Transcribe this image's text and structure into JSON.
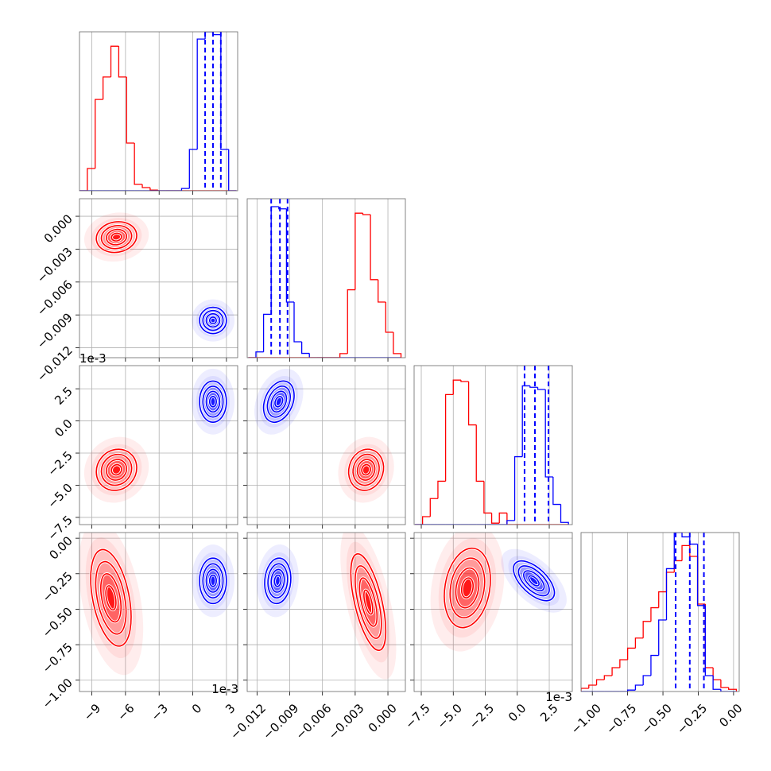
{
  "chart_data": {
    "type": "corner",
    "axes": [
      {
        "lim": [
          -10.1,
          4.0
        ],
        "offset_label": "1e-3",
        "ticks": [
          {
            "value": -9,
            "label": "−9"
          },
          {
            "value": -6,
            "label": "−6"
          },
          {
            "value": -3,
            "label": "−3"
          },
          0,
          3
        ]
      },
      {
        "lim": [
          -0.0129,
          0.0016
        ],
        "ticks": [
          {
            "value": -0.012,
            "label": "−0.012"
          },
          {
            "value": -0.009,
            "label": "−0.009"
          },
          {
            "value": -0.006,
            "label": "−0.006"
          },
          {
            "value": -0.003,
            "label": "−0.003"
          },
          {
            "value": 0,
            "label": "0.000"
          }
        ]
      },
      {
        "lim": [
          -8.06,
          4.3
        ],
        "offset_label": "1e-3",
        "ticks": [
          {
            "value": -7.5,
            "label": "−7.5"
          },
          {
            "value": -5,
            "label": "−5.0"
          },
          {
            "value": -2.5,
            "label": "−2.5"
          },
          {
            "value": 0,
            "label": "0.0"
          },
          {
            "value": 2.5,
            "label": "2.5"
          }
        ]
      },
      {
        "lim": [
          -1.08,
          0.04
        ],
        "ticks": [
          {
            "value": -1,
            "label": "−1.00"
          },
          {
            "value": -0.75,
            "label": "−0.75"
          },
          {
            "value": -0.5,
            "label": "−0.50"
          },
          {
            "value": -0.25,
            "label": "−0.25"
          },
          {
            "value": 0,
            "label": "0.00"
          }
        ]
      }
    ],
    "histograms": [
      {
        "ylim": [
          0,
          1100
        ],
        "bins": [
          -10.1,
          -9.4,
          -8.7,
          -8.0,
          -7.3,
          -6.6,
          -5.9,
          -5.2,
          -4.5,
          -3.8,
          -3.1,
          -2.4,
          -1.7,
          -1.0,
          -0.3,
          0.4,
          1.1,
          1.8,
          2.5,
          3.2,
          3.9
        ],
        "series": [
          {
            "color": "#ff0000",
            "values": [
              0,
              154,
              632,
              787,
              1000,
              787,
              330,
              44,
              22,
              5,
              0,
              0,
              0,
              0,
              0,
              0,
              0,
              0,
              0,
              0
            ]
          },
          {
            "color": "#0000ff",
            "values": [
              0,
              0,
              0,
              0,
              0,
              0,
              0,
              0,
              0,
              0,
              0,
              0,
              0,
              16,
              286,
              1050,
              1100,
              1080,
              286,
              0
            ],
            "quantiles": [
              1.1,
              1.8,
              2.5
            ]
          }
        ]
      },
      {
        "ylim": [
          0,
          1100
        ],
        "bins": [
          -0.0128,
          -0.0121,
          -0.0114,
          -0.0107,
          -0.01,
          -0.0093,
          -0.0086,
          -0.0079,
          -0.0072,
          -0.0065,
          -0.0058,
          -0.0051,
          -0.0044,
          -0.0037,
          -0.003,
          -0.0023,
          -0.0016,
          -0.0009,
          -0.0002,
          0.0005,
          0.0012
        ],
        "series": [
          {
            "color": "#0000ff",
            "values": [
              0,
              40,
              300,
              1045,
              1030,
              385,
              110,
              30,
              0,
              0,
              0,
              0,
              0,
              0,
              0,
              0,
              0,
              0,
              0,
              0
            ],
            "quantiles": [
              -0.0107,
              -0.0099,
              -0.0092
            ]
          },
          {
            "color": "#ff0000",
            "values": [
              0,
              0,
              0,
              0,
              0,
              0,
              0,
              0,
              0,
              0,
              0,
              0,
              28,
              470,
              1000,
              990,
              540,
              385,
              176,
              28
            ]
          }
        ]
      },
      {
        "ylim": [
          0,
          1100
        ],
        "bins": [
          -8.0,
          -7.4,
          -6.8,
          -6.2,
          -5.6,
          -5.0,
          -4.4,
          -3.8,
          -3.2,
          -2.6,
          -2.0,
          -1.4,
          -0.8,
          -0.2,
          0.4,
          1.0,
          1.6,
          2.2,
          2.8,
          3.4,
          4.0
        ],
        "series": [
          {
            "color": "#ff0000",
            "values": [
              0,
              55,
              180,
              300,
              900,
              1000,
              990,
              690,
              300,
              80,
              10,
              80,
              0,
              0,
              0,
              0,
              0,
              0,
              0,
              0
            ]
          },
          {
            "color": "#0000ff",
            "values": [
              0,
              0,
              0,
              0,
              0,
              0,
              0,
              0,
              0,
              0,
              0,
              0,
              28,
              470,
              960,
              950,
              935,
              330,
              140,
              15
            ],
            "quantiles": [
              0.57,
              1.38,
              2.44
            ]
          }
        ]
      },
      {
        "ylim": [
          0,
          1100
        ],
        "bins": [
          -1.08,
          -1.025,
          -0.97,
          -0.915,
          -0.86,
          -0.805,
          -0.75,
          -0.695,
          -0.64,
          -0.585,
          -0.53,
          -0.475,
          -0.42,
          -0.365,
          -0.31,
          -0.255,
          -0.2,
          -0.145,
          -0.09,
          -0.035,
          0.02
        ],
        "series": [
          {
            "color": "#ff0000",
            "values": [
              22,
              44,
              82,
              110,
              165,
              220,
              300,
              370,
              485,
              580,
              690,
              825,
              905,
              1010,
              935,
              605,
              165,
              82,
              28,
              15
            ]
          },
          {
            "color": "#0000ff",
            "values": [
              0,
              0,
              0,
              0,
              0,
              0,
              10,
              44,
              110,
              250,
              495,
              850,
              1100,
              1070,
              1020,
              595,
              110,
              15,
              0,
              0
            ],
            "quantiles": [
              -0.41,
              -0.31,
              -0.21
            ]
          }
        ]
      }
    ],
    "pairs": [
      {
        "series": [
          {
            "color": "#ff0000",
            "mean": [
              -6.8,
              -0.0019
            ],
            "sd": [
              0.9,
              0.0007
            ],
            "corr": 0.1
          },
          {
            "color": "#0000ff",
            "mean": [
              1.8,
              -0.0095
            ],
            "sd": [
              0.6,
              0.0006
            ],
            "corr": 0
          }
        ]
      },
      {
        "series": [
          {
            "color": "#ff0000",
            "mean": [
              -6.8,
              -3.8
            ],
            "sd": [
              0.9,
              0.8
            ],
            "corr": 0.1
          },
          {
            "color": "#0000ff",
            "mean": [
              1.8,
              1.5
            ],
            "sd": [
              0.6,
              0.8
            ],
            "corr": 0
          }
        ]
      },
      {
        "series": [
          {
            "color": "#0000ff",
            "mean": [
              -0.01,
              1.5
            ],
            "sd": [
              0.0007,
              0.8
            ],
            "corr": 0.3
          },
          {
            "color": "#ff0000",
            "mean": [
              -0.002,
              -3.8
            ],
            "sd": [
              0.0008,
              0.8
            ],
            "corr": 0.1
          }
        ]
      },
      {
        "series": [
          {
            "color": "#ff0000",
            "mean": [
              -7.3,
              -0.42
            ],
            "sd": [
              0.9,
              0.17
            ],
            "corr": -0.4
          },
          {
            "color": "#0000ff",
            "mean": [
              1.8,
              -0.3
            ],
            "sd": [
              0.6,
              0.08
            ],
            "corr": 0
          }
        ]
      },
      {
        "series": [
          {
            "color": "#0000ff",
            "mean": [
              -0.0101,
              -0.3
            ],
            "sd": [
              0.0006,
              0.08
            ],
            "corr": 0.1
          },
          {
            "color": "#ff0000",
            "mean": [
              -0.0018,
              -0.45
            ],
            "sd": [
              0.0008,
              0.17
            ],
            "corr": -0.6
          }
        ]
      },
      {
        "series": [
          {
            "color": "#ff0000",
            "mean": [
              -3.9,
              -0.35
            ],
            "sd": [
              0.9,
              0.14
            ],
            "corr": 0.2
          },
          {
            "color": "#0000ff",
            "mean": [
              1.3,
              -0.3
            ],
            "sd": [
              0.8,
              0.07
            ],
            "corr": -0.6
          }
        ]
      }
    ]
  }
}
